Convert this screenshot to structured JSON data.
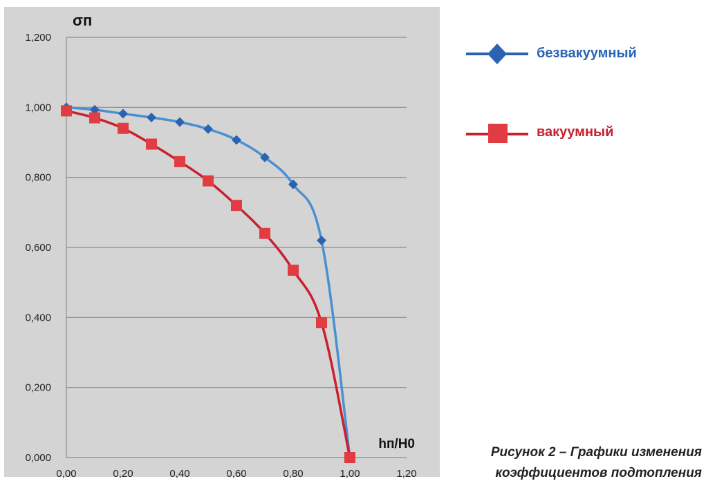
{
  "chart_data": {
    "type": "line",
    "ylabel": "σп",
    "xlabel": "hп/H0",
    "xlim": [
      0,
      1.2
    ],
    "ylim": [
      0,
      1.2
    ],
    "xticks": [
      "0,00",
      "0,20",
      "0,40",
      "0,60",
      "0,80",
      "1,00",
      "1,20"
    ],
    "yticks": [
      "0,000",
      "0,200",
      "0,400",
      "0,600",
      "0,800",
      "1,000",
      "1,200"
    ],
    "grid": "horizontal",
    "legend_placement": "right",
    "x": [
      0.0,
      0.1,
      0.2,
      0.3,
      0.4,
      0.5,
      0.6,
      0.7,
      0.8,
      0.9,
      1.0
    ],
    "series": [
      {
        "name": "безвакуумный",
        "marker": "diamond",
        "color": "#2b63b3",
        "line_color": "#4a90d0",
        "values": [
          1.0,
          0.993,
          0.982,
          0.971,
          0.958,
          0.938,
          0.907,
          0.857,
          0.78,
          0.62,
          0.0
        ]
      },
      {
        "name": "вакуумный",
        "marker": "square",
        "color": "#e03c42",
        "line_color": "#c8202e",
        "values": [
          0.99,
          0.97,
          0.94,
          0.895,
          0.845,
          0.79,
          0.72,
          0.64,
          0.535,
          0.385,
          0.0
        ]
      }
    ]
  },
  "caption": {
    "line1": "Рисунок 2 – Графики  изменения",
    "line2": "коэффициентов подтопления"
  }
}
